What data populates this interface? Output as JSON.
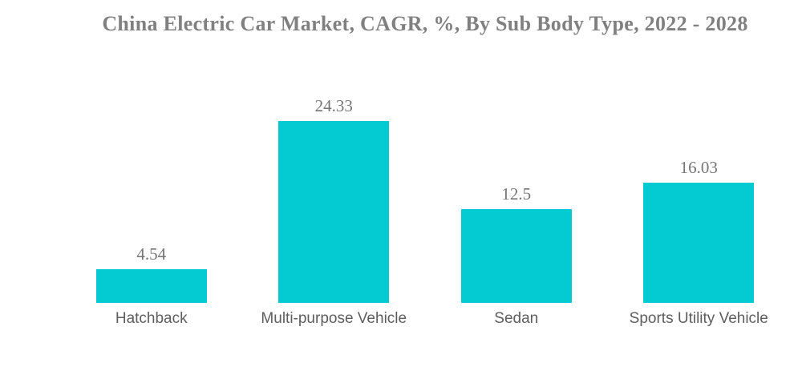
{
  "chart_data": {
    "type": "bar",
    "title": "China Electric Car Market, CAGR, %, By Sub Body Type, 2022 - 2028",
    "categories": [
      "Hatchback",
      "Multi-purpose Vehicle",
      "Sedan",
      "Sports Utility Vehicle"
    ],
    "values": [
      4.54,
      24.33,
      12.5,
      16.03
    ],
    "value_labels": [
      "4.54",
      "24.33",
      "12.5",
      "16.03"
    ],
    "xlabel": "",
    "ylabel": "",
    "ylim": [
      0,
      33.5
    ],
    "grid": false,
    "legend": false,
    "colors": {
      "bar": "#04CBD1",
      "title": "#808080",
      "value_label": "#757575",
      "category_label": "#5E5E5E",
      "background": "#FFFFFF"
    }
  }
}
